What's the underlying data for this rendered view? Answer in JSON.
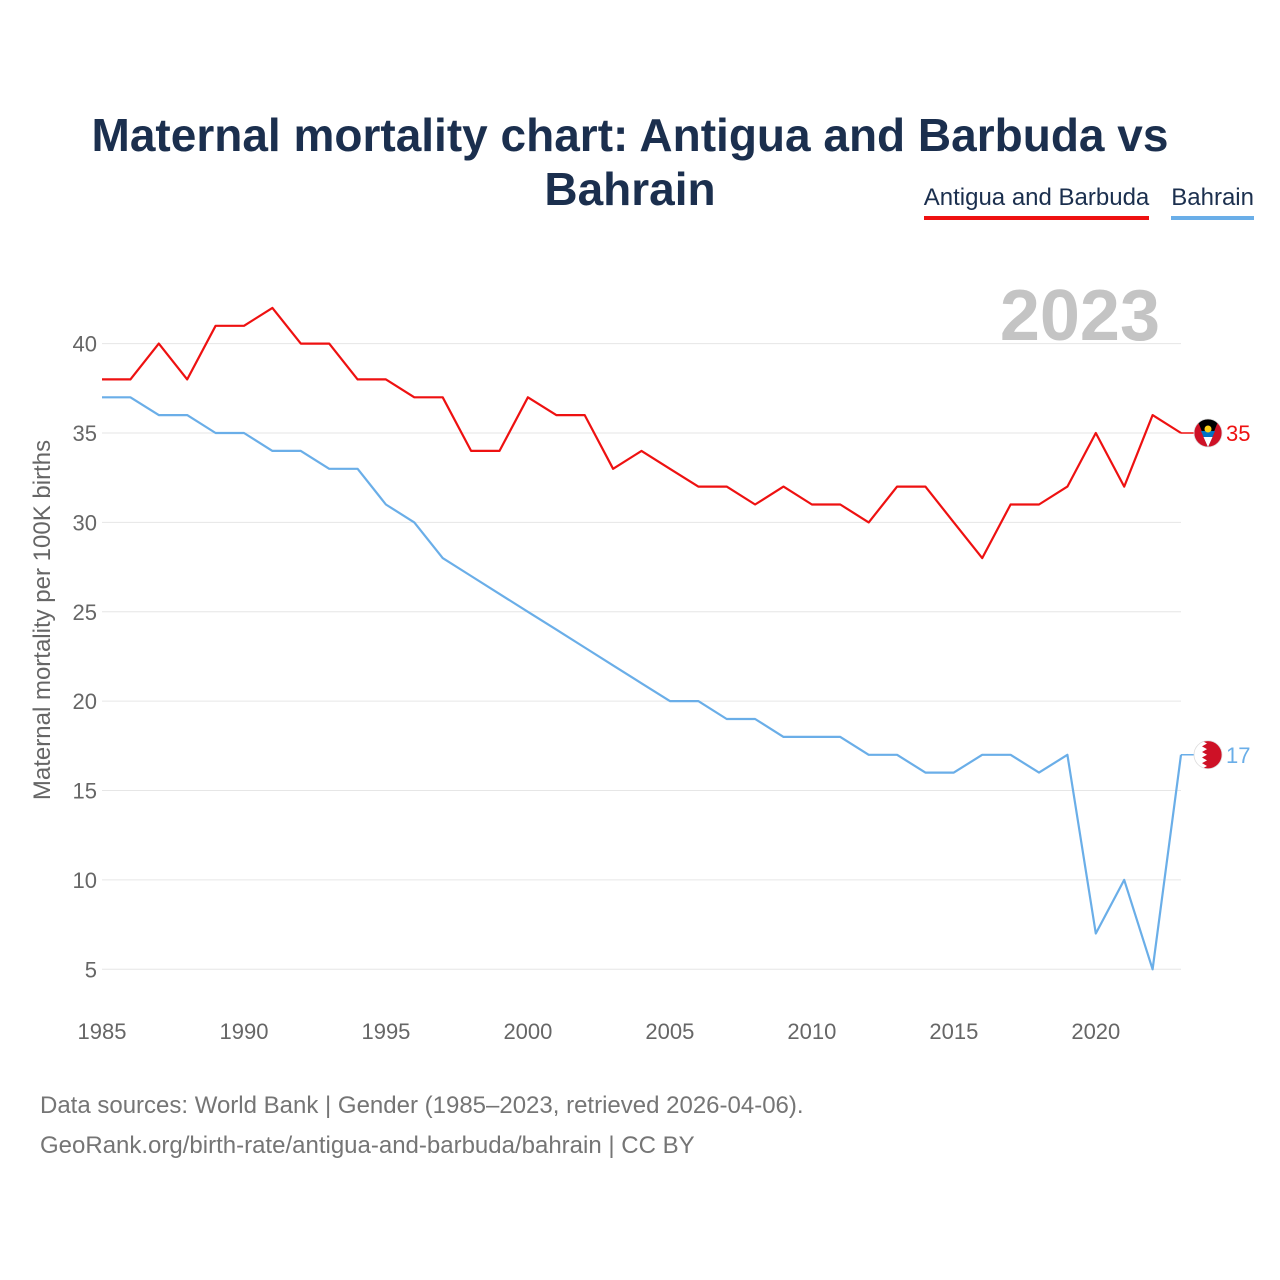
{
  "title": "Maternal mortality chart: Antigua and Barbuda vs Bahrain",
  "legend": [
    {
      "label": "Antigua and Barbuda",
      "color": "#ee1111"
    },
    {
      "label": "Bahrain",
      "color": "#6aaee8"
    }
  ],
  "year_watermark": "2023",
  "footer": {
    "line1": "Data sources: World Bank | Gender (1985–2023, retrieved 2026-04-06).",
    "line2": "GeoRank.org/birth-rate/antigua-and-barbuda/bahrain | CC BY"
  },
  "chart_data": {
    "type": "line",
    "title": "Maternal mortality chart: Antigua and Barbuda vs Bahrain",
    "xlabel": "",
    "ylabel": "Maternal mortality per 100K births",
    "xlim": [
      1985,
      2023
    ],
    "ylim": [
      3,
      43
    ],
    "x_ticks": [
      1985,
      1990,
      1995,
      2000,
      2005,
      2010,
      2015,
      2020
    ],
    "y_ticks": [
      5,
      10,
      15,
      20,
      25,
      30,
      35,
      40
    ],
    "grid": true,
    "legend_position": "top-right",
    "x": [
      1985,
      1986,
      1987,
      1988,
      1989,
      1990,
      1991,
      1992,
      1993,
      1994,
      1995,
      1996,
      1997,
      1998,
      1999,
      2000,
      2001,
      2002,
      2003,
      2004,
      2005,
      2006,
      2007,
      2008,
      2009,
      2010,
      2011,
      2012,
      2013,
      2014,
      2015,
      2016,
      2017,
      2018,
      2019,
      2020,
      2021,
      2022,
      2023
    ],
    "series": [
      {
        "name": "Antigua and Barbuda",
        "color": "#ee1111",
        "end_label": "35",
        "values": [
          38,
          38,
          40,
          38,
          41,
          41,
          42,
          40,
          40,
          38,
          38,
          37,
          37,
          34,
          34,
          37,
          36,
          36,
          33,
          34,
          33,
          32,
          32,
          31,
          32,
          31,
          31,
          30,
          32,
          32,
          30,
          28,
          31,
          31,
          32,
          35,
          32,
          36,
          35
        ]
      },
      {
        "name": "Bahrain",
        "color": "#6aaee8",
        "end_label": "17",
        "values": [
          37,
          37,
          36,
          36,
          35,
          35,
          34,
          34,
          33,
          33,
          31,
          30,
          28,
          27,
          26,
          25,
          24,
          23,
          22,
          21,
          20,
          20,
          19,
          19,
          18,
          18,
          18,
          17,
          17,
          16,
          16,
          17,
          17,
          16,
          17,
          7,
          10,
          5,
          17
        ]
      }
    ]
  }
}
